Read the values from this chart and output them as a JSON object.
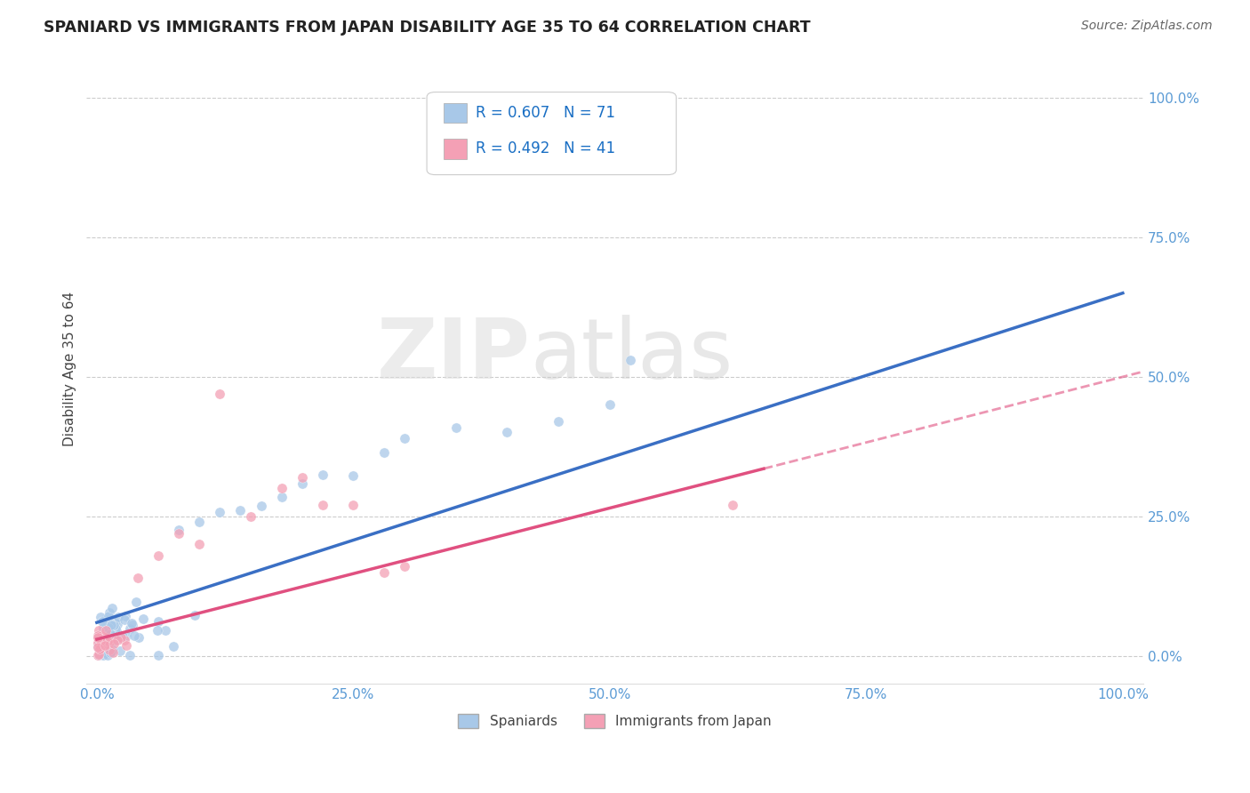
{
  "title": "SPANIARD VS IMMIGRANTS FROM JAPAN DISABILITY AGE 35 TO 64 CORRELATION CHART",
  "source": "Source: ZipAtlas.com",
  "xlabel": "",
  "ylabel": "Disability Age 35 to 64",
  "legend_labels": [
    "Spaniards",
    "Immigrants from Japan"
  ],
  "r_spaniard": 0.607,
  "n_spaniard": 71,
  "r_japan": 0.492,
  "n_japan": 41,
  "color_spaniard": "#A8C8E8",
  "color_japan": "#F4A0B5",
  "trendline_color_spaniard": "#3A6FC4",
  "trendline_color_japan": "#E05080",
  "background_color": "#FFFFFF",
  "watermark_zip": "ZIP",
  "watermark_atlas": "atlas",
  "xlim": [
    -0.01,
    1.02
  ],
  "ylim": [
    -0.05,
    1.08
  ],
  "xticks": [
    0.0,
    0.25,
    0.5,
    0.75,
    1.0
  ],
  "yticks": [
    0.0,
    0.25,
    0.5,
    0.75,
    1.0
  ],
  "xticklabels": [
    "0.0%",
    "25.0%",
    "50.0%",
    "75.0%",
    "100.0%"
  ],
  "yticklabels": [
    "0.0%",
    "25.0%",
    "50.0%",
    "75.0%",
    "100.0%"
  ],
  "tick_color": "#5B9BD5",
  "grid_color": "#CCCCCC"
}
